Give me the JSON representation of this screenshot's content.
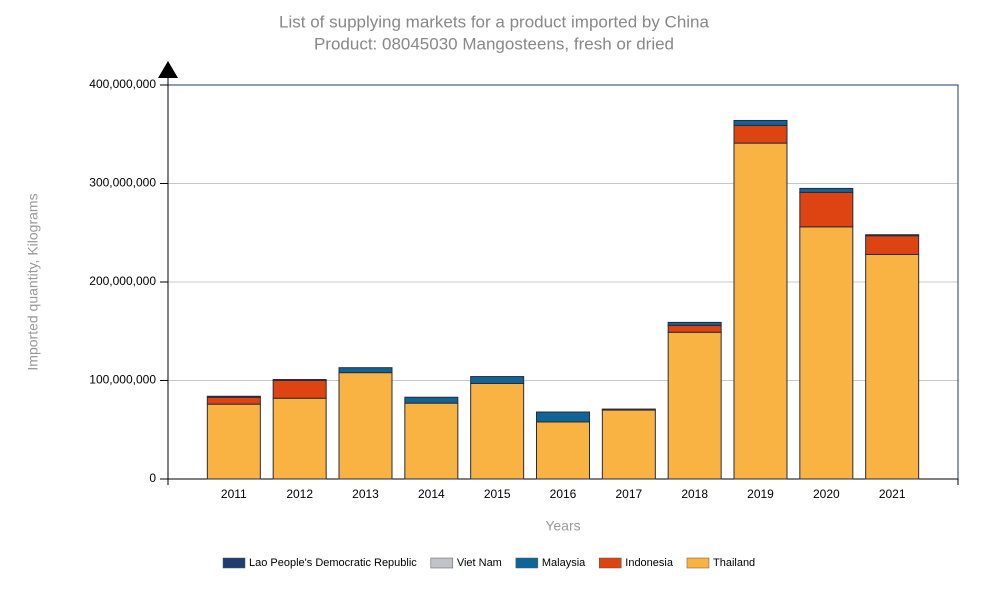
{
  "chart_data": {
    "type": "bar",
    "stacked": true,
    "title": "List of supplying markets for a product imported by China",
    "subtitle": "Product: 08045030 Mangosteens, fresh or dried",
    "x_label": "Years",
    "y_label": "Imported quantity, Kilograms",
    "categories": [
      "2011",
      "2012",
      "2013",
      "2014",
      "2015",
      "2016",
      "2017",
      "2018",
      "2019",
      "2020",
      "2021"
    ],
    "series": [
      {
        "name": "Lao People's Democratic Republic",
        "color": "#1f3d6e",
        "values": [
          0,
          0,
          0,
          0,
          0,
          0,
          0,
          0,
          0,
          0,
          0
        ]
      },
      {
        "name": "Viet Nam",
        "color": "#c0c4c8",
        "values": [
          0,
          0,
          0,
          0,
          0,
          0,
          0,
          0,
          0,
          0,
          0
        ]
      },
      {
        "name": "Malaysia",
        "color": "#0f6696",
        "values": [
          1000000,
          1000000,
          5000000,
          6000000,
          7000000,
          10000000,
          1000000,
          3000000,
          5000000,
          4000000,
          1000000
        ]
      },
      {
        "name": "Indonesia",
        "color": "#dd4411",
        "values": [
          7000000,
          18000000,
          0,
          0,
          0,
          0,
          0,
          7000000,
          18000000,
          35000000,
          19000000
        ]
      },
      {
        "name": "Thailand",
        "color": "#f9b342",
        "values": [
          76000000,
          82000000,
          108000000,
          77000000,
          97000000,
          58000000,
          70000000,
          149000000,
          341000000,
          256000000,
          228000000
        ]
      }
    ],
    "ylim": [
      0,
      400000000
    ],
    "yticks": [
      0,
      {
        "value": 100000000,
        "label": "100,000,000"
      },
      {
        "value": 200000000,
        "label": "200,000,000"
      },
      {
        "value": 300000000,
        "label": "300,000,000"
      },
      {
        "value": 400000000,
        "label": "400,000,000"
      }
    ],
    "grid": true
  }
}
